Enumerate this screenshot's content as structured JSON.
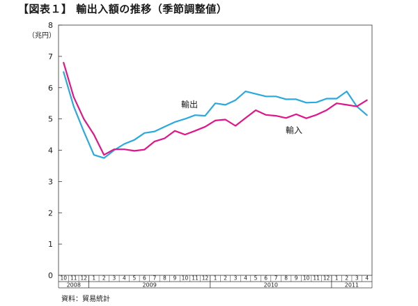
{
  "chart_title": "【図表１】 輸出入額の推移（季節調整値）",
  "source_note": "資料：貿易統計",
  "chart_data": {
    "type": "line",
    "title": "【図表１】 輸出入額の推移（季節調整値）",
    "ylabel": "（兆円）",
    "ylim": [
      0,
      8
    ],
    "yticks": [
      0,
      1,
      2,
      3,
      4,
      5,
      6,
      7,
      8
    ],
    "grid": false,
    "categories": [
      "10",
      "11",
      "12",
      "1",
      "2",
      "3",
      "4",
      "5",
      "6",
      "7",
      "8",
      "9",
      "10",
      "11",
      "12",
      "1",
      "2",
      "3",
      "4",
      "5",
      "6",
      "7",
      "8",
      "9",
      "10",
      "11",
      "12",
      "1",
      "2",
      "3",
      "4"
    ],
    "year_groups": [
      {
        "label": "2008",
        "count": 3
      },
      {
        "label": "2009",
        "count": 12
      },
      {
        "label": "2010",
        "count": 12
      },
      {
        "label": "2011",
        "count": 4
      }
    ],
    "series": [
      {
        "name": "輸出",
        "color": "#2aa8e0",
        "values": [
          6.5,
          5.4,
          4.6,
          3.85,
          3.75,
          4.0,
          4.2,
          4.33,
          4.55,
          4.6,
          4.75,
          4.9,
          5.0,
          5.12,
          5.1,
          5.5,
          5.45,
          5.6,
          5.88,
          5.8,
          5.72,
          5.72,
          5.63,
          5.63,
          5.52,
          5.53,
          5.65,
          5.65,
          5.88,
          5.4,
          5.12
        ]
      },
      {
        "name": "輸入",
        "color": "#e0158a",
        "values": [
          6.8,
          5.7,
          5.0,
          4.5,
          3.85,
          4.03,
          4.03,
          3.98,
          4.02,
          4.28,
          4.38,
          4.62,
          4.5,
          4.62,
          4.75,
          4.95,
          4.98,
          4.78,
          5.03,
          5.28,
          5.13,
          5.1,
          5.03,
          5.15,
          5.02,
          5.13,
          5.28,
          5.5,
          5.45,
          5.4,
          5.6
        ]
      }
    ]
  }
}
